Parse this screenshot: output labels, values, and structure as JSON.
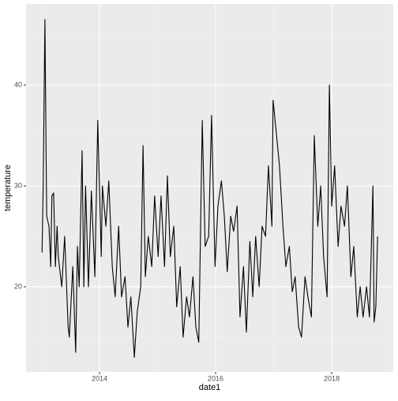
{
  "chart_data": {
    "type": "line",
    "xlabel": "date1",
    "ylabel": "temperature",
    "x": [
      2013.01,
      2013.03,
      2013.06,
      2013.09,
      2013.13,
      2013.16,
      2013.18,
      2013.21,
      2013.24,
      2013.27,
      2013.29,
      2013.35,
      2013.4,
      2013.46,
      2013.48,
      2013.54,
      2013.59,
      2013.62,
      2013.65,
      2013.7,
      2013.73,
      2013.76,
      2013.81,
      2013.86,
      2013.92,
      2013.97,
      2014.03,
      2014.05,
      2014.11,
      2014.16,
      2014.22,
      2014.27,
      2014.33,
      2014.38,
      2014.44,
      2014.49,
      2014.54,
      2014.6,
      2014.65,
      2014.71,
      2014.75,
      2014.79,
      2014.84,
      2014.9,
      2014.95,
      2015.01,
      2015.06,
      2015.12,
      2015.17,
      2015.22,
      2015.28,
      2015.33,
      2015.39,
      2015.44,
      2015.5,
      2015.55,
      2015.61,
      2015.66,
      2015.71,
      2015.77,
      2015.82,
      2015.88,
      2015.93,
      2015.99,
      2016.04,
      2016.1,
      2016.15,
      2016.2,
      2016.26,
      2016.31,
      2016.37,
      2016.42,
      2016.48,
      2016.53,
      2016.59,
      2016.64,
      2016.69,
      2016.75,
      2016.8,
      2016.86,
      2016.91,
      2016.97,
      2016.99,
      2017.05,
      2017.1,
      2017.16,
      2017.21,
      2017.27,
      2017.32,
      2017.37,
      2017.43,
      2017.48,
      2017.54,
      2017.59,
      2017.65,
      2017.7,
      2017.76,
      2017.81,
      2017.86,
      2017.92,
      2017.96,
      2018.0,
      2018.05,
      2018.11,
      2018.16,
      2018.22,
      2018.27,
      2018.33,
      2018.38,
      2018.44,
      2018.49,
      2018.54,
      2018.6,
      2018.65,
      2018.71,
      2018.73,
      2018.76,
      2018.79
    ],
    "series": [
      {
        "color": "#000000",
        "values": [
          23.4,
          30,
          46.5,
          27,
          26,
          22,
          29,
          29.3,
          22,
          26,
          23,
          20,
          25,
          16,
          15,
          22,
          13.5,
          24,
          20,
          33.5,
          20,
          30,
          20,
          29.5,
          21,
          36.5,
          23,
          30,
          26,
          30.5,
          22,
          19,
          26,
          19,
          21,
          16,
          19,
          13,
          17.5,
          20,
          34,
          21,
          25,
          22,
          29,
          23,
          29,
          22,
          31,
          23,
          26,
          18,
          22,
          15,
          19,
          17,
          21,
          16,
          14.5,
          36.5,
          24,
          25,
          37,
          22,
          28,
          30.5,
          27,
          21.5,
          27,
          25.5,
          28,
          17,
          22,
          15.5,
          24.5,
          19,
          25,
          20,
          26,
          25,
          32,
          26,
          38.5,
          35,
          32,
          26,
          22,
          24,
          19.5,
          21,
          16,
          15,
          21,
          19,
          17,
          35,
          26,
          30,
          23,
          19,
          40,
          28,
          32,
          24,
          28,
          26,
          30,
          21,
          24,
          17,
          20,
          17,
          20,
          17,
          30,
          16.5,
          18,
          25
        ]
      }
    ],
    "xlim": [
      2012.735,
      2019.06
    ],
    "xticks": [
      2014,
      2016,
      2018
    ],
    "x_minor_ticks": [
      2013,
      2015,
      2017,
      2019
    ],
    "ylim": [
      11.56,
      48.05
    ],
    "yticks": [
      20,
      30,
      40
    ],
    "y_minor_ticks": [
      15,
      25,
      35,
      45
    ],
    "grid": true
  }
}
